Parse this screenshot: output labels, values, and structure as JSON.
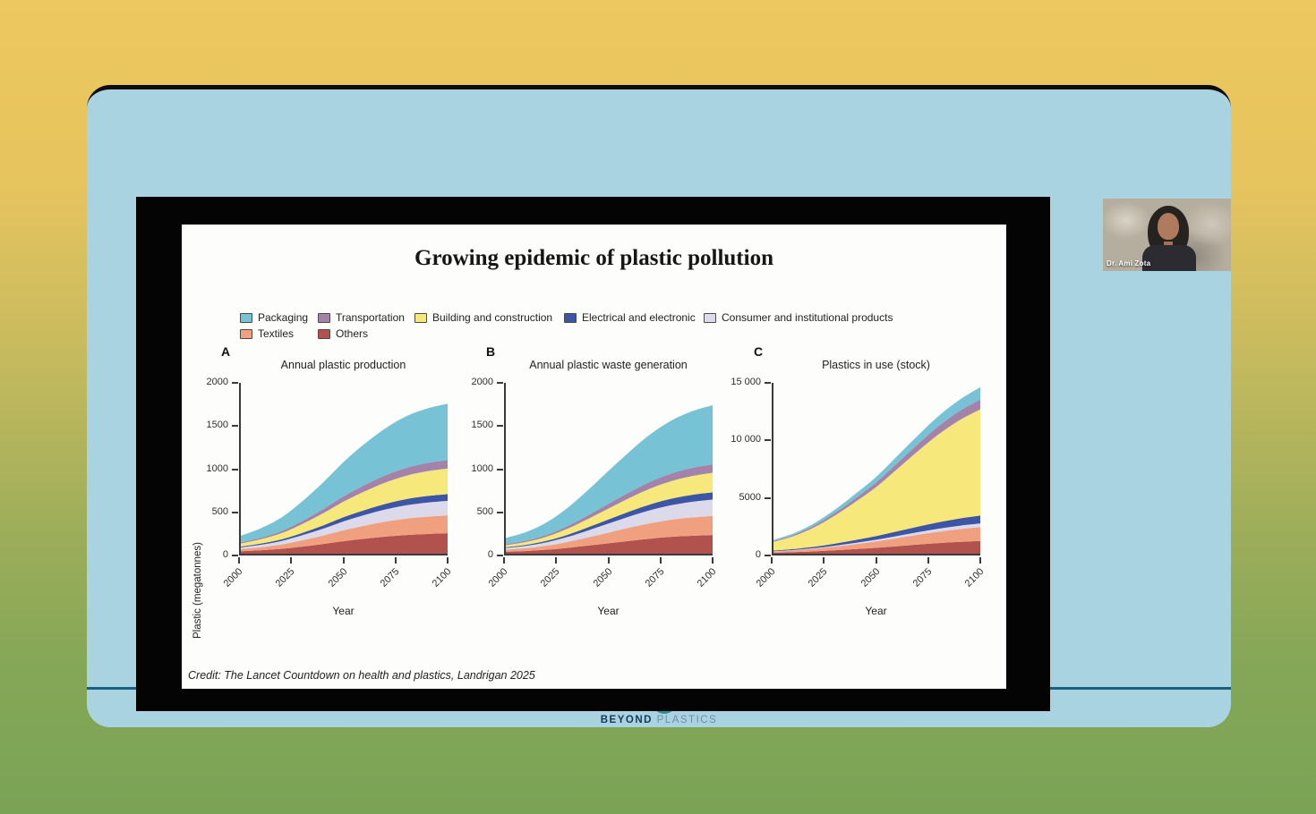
{
  "window": {
    "type": "video-meeting-screenshare"
  },
  "webcam": {
    "name_label": "Dr. Ami Zota"
  },
  "footer_logo": {
    "beyond": "BEYOND",
    "plastics": "PLASTICS"
  },
  "slide": {
    "title": "Growing epidemic of plastic pollution",
    "credit": "Credit: The Lancet Countdown on health and plastics, Landrigan 2025"
  },
  "colors": {
    "packaging": "#77c3d5",
    "transportation": "#a383a9",
    "building_and_construction": "#f6e87b",
    "electrical_and_electronic": "#3c55a4",
    "consumer_and_institutional": "#dcd9ea",
    "textiles": "#f0a07e",
    "others": "#b2524e",
    "window_bg": "#a9d3e1",
    "accent_line": "#1a607f",
    "background_top": "#edc75f",
    "background_bottom": "#7ba355"
  },
  "legend": {
    "rows": [
      [
        {
          "label": "Packaging",
          "color": "#77c3d5"
        },
        {
          "label": "Transportation",
          "color": "#a383a9"
        },
        {
          "label": "Building and construction",
          "color": "#f6e87b"
        },
        {
          "label": "Electrical and electronic",
          "color": "#3c55a4"
        },
        {
          "label": "Consumer and institutional products",
          "color": "#dcd9ea"
        }
      ],
      [
        {
          "label": "Textiles",
          "color": "#f0a07e"
        },
        {
          "label": "Others",
          "color": "#b2524e"
        }
      ]
    ]
  },
  "chart_data": [
    {
      "type": "area",
      "panel": "A",
      "title": "Annual plastic production",
      "xlabel": "Year",
      "ylabel": "Plastic (megatonnes)",
      "legend_position": "top-shared",
      "grid": false,
      "x": [
        2000,
        2010,
        2020,
        2030,
        2040,
        2050,
        2060,
        2070,
        2080,
        2090,
        2100
      ],
      "xtick_years": [
        2000,
        2025,
        2050,
        2075,
        2100
      ],
      "ylim": [
        0,
        2000
      ],
      "yticks": [
        {
          "v": 0,
          "label": "0"
        },
        {
          "v": 500,
          "label": "500"
        },
        {
          "v": 1000,
          "label": "1000"
        },
        {
          "v": 1500,
          "label": "1500"
        },
        {
          "v": 2000,
          "label": "2000"
        }
      ],
      "series": [
        {
          "name": "Others",
          "color": "#b2524e",
          "values": [
            29,
            41,
            58,
            84,
            114,
            147,
            175,
            200,
            219,
            231,
            239
          ]
        },
        {
          "name": "Textiles",
          "color": "#f0a07e",
          "values": [
            25,
            36,
            51,
            74,
            100,
            129,
            154,
            175,
            192,
            202,
            209
          ]
        },
        {
          "name": "Consumer and institutional products",
          "color": "#dcd9ea",
          "values": [
            20,
            29,
            42,
            60,
            81,
            105,
            125,
            143,
            156,
            165,
            171
          ]
        },
        {
          "name": "Electrical and electronic",
          "color": "#3c55a4",
          "values": [
            9,
            14,
            19,
            28,
            38,
            49,
            58,
            66,
            72,
            77,
            79
          ]
        },
        {
          "name": "Building and construction",
          "color": "#f6e87b",
          "values": [
            36,
            51,
            73,
            105,
            143,
            184,
            219,
            250,
            274,
            289,
            299
          ]
        },
        {
          "name": "Transportation",
          "color": "#a383a9",
          "values": [
            12,
            17,
            25,
            35,
            48,
            62,
            74,
            84,
            92,
            97,
            100
          ]
        },
        {
          "name": "Packaging",
          "color": "#77c3d5",
          "values": [
            79,
            113,
            161,
            233,
            315,
            405,
            484,
            551,
            604,
            638,
            660
          ]
        }
      ]
    },
    {
      "type": "area",
      "panel": "B",
      "title": "Annual plastic waste generation",
      "xlabel": "Year",
      "ylabel": "",
      "legend_position": "top-shared",
      "grid": false,
      "x": [
        2000,
        2010,
        2020,
        2030,
        2040,
        2050,
        2060,
        2070,
        2080,
        2090,
        2100
      ],
      "xtick_years": [
        2000,
        2025,
        2050,
        2075,
        2100
      ],
      "ylim": [
        0,
        2000
      ],
      "yticks": [
        {
          "v": 0,
          "label": "0"
        },
        {
          "v": 500,
          "label": "500"
        },
        {
          "v": 1000,
          "label": "1000"
        },
        {
          "v": 1500,
          "label": "1500"
        },
        {
          "v": 2000,
          "label": "2000"
        }
      ],
      "series": [
        {
          "name": "Others",
          "color": "#b2524e",
          "values": [
            23,
            32,
            47,
            68,
            95,
            123,
            151,
            176,
            197,
            210,
            219
          ]
        },
        {
          "name": "Textiles",
          "color": "#f0a07e",
          "values": [
            24,
            33,
            48,
            70,
            97,
            126,
            155,
            181,
            201,
            215,
            224
          ]
        },
        {
          "name": "Consumer and institutional products",
          "color": "#dcd9ea",
          "values": [
            20,
            28,
            40,
            59,
            82,
            107,
            131,
            153,
            170,
            182,
            190
          ]
        },
        {
          "name": "Electrical and electronic",
          "color": "#3c55a4",
          "values": [
            9,
            12,
            18,
            26,
            37,
            48,
            59,
            69,
            76,
            82,
            85
          ]
        },
        {
          "name": "Building and construction",
          "color": "#f6e87b",
          "values": [
            24,
            34,
            49,
            71,
            99,
            129,
            158,
            185,
            206,
            220,
            230
          ]
        },
        {
          "name": "Transportation",
          "color": "#a383a9",
          "values": [
            11,
            15,
            21,
            31,
            43,
            56,
            68,
            80,
            89,
            95,
            99
          ]
        },
        {
          "name": "Packaging",
          "color": "#77c3d5",
          "values": [
            73,
            101,
            147,
            214,
            298,
            389,
            476,
            556,
            619,
            663,
            691
          ]
        }
      ]
    },
    {
      "type": "area",
      "panel": "C",
      "title": "Plastics in use (stock)",
      "xlabel": "Year",
      "ylabel": "",
      "legend_position": "top-shared",
      "grid": false,
      "x": [
        2000,
        2010,
        2020,
        2030,
        2040,
        2050,
        2060,
        2070,
        2080,
        2090,
        2100
      ],
      "xtick_years": [
        2000,
        2025,
        2050,
        2075,
        2100
      ],
      "ylim": [
        0,
        15000
      ],
      "yticks": [
        {
          "v": 0,
          "label": "0"
        },
        {
          "v": 5000,
          "label": "5000"
        },
        {
          "v": 10000,
          "label": "10 000"
        },
        {
          "v": 15000,
          "label": "15 000"
        }
      ],
      "series": [
        {
          "name": "Others",
          "color": "#b2524e",
          "values": [
            92,
            139,
            208,
            300,
            408,
            524,
            662,
            801,
            932,
            1040,
            1124
          ]
        },
        {
          "name": "Textiles",
          "color": "#f0a07e",
          "values": [
            100,
            149,
            224,
            324,
            440,
            564,
            714,
            863,
            1004,
            1121,
            1212
          ]
        },
        {
          "name": "Consumer and institutional products",
          "color": "#dcd9ea",
          "values": [
            26,
            40,
            59,
            86,
            117,
            150,
            189,
            229,
            266,
            297,
            321
          ]
        },
        {
          "name": "Electrical and electronic",
          "color": "#3c55a4",
          "values": [
            56,
            85,
            127,
            183,
            249,
            320,
            404,
            489,
            569,
            635,
            686
          ]
        },
        {
          "name": "Building and construction",
          "color": "#f6e87b",
          "values": [
            767,
            1150,
            1725,
            2492,
            3387,
            4345,
            5495,
            6646,
            7732,
            8627,
            9329
          ]
        },
        {
          "name": "Transportation",
          "color": "#a383a9",
          "values": [
            72,
            108,
            162,
            234,
            318,
            408,
            516,
            624,
            726,
            810,
            876
          ]
        },
        {
          "name": "Packaging",
          "color": "#77c3d5",
          "values": [
            88,
            131,
            197,
            285,
            387,
            496,
            628,
            759,
            883,
            986,
            1066
          ]
        }
      ]
    }
  ]
}
